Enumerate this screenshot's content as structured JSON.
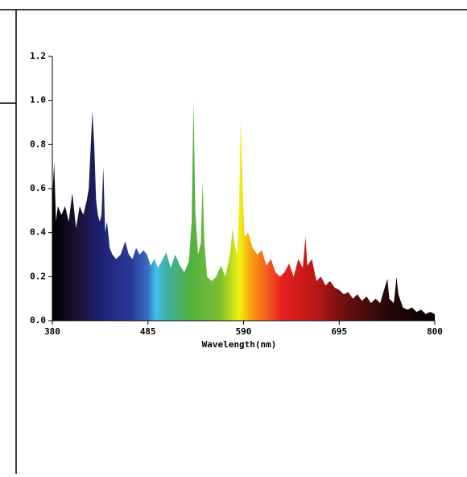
{
  "chart_data": {
    "type": "area",
    "xlabel": "Wavelength(nm)",
    "x": [
      380,
      382,
      384,
      386,
      390,
      394,
      398,
      402,
      406,
      410,
      414,
      418,
      420,
      422,
      424,
      426,
      428,
      430,
      432,
      434,
      436,
      438,
      440,
      443,
      446,
      450,
      455,
      460,
      464,
      468,
      472,
      476,
      480,
      484,
      488,
      492,
      496,
      500,
      505,
      510,
      515,
      520,
      525,
      530,
      533,
      535,
      537,
      540,
      543,
      545,
      547,
      550,
      555,
      560,
      565,
      570,
      575,
      578,
      580,
      583,
      585,
      587,
      589,
      591,
      595,
      600,
      605,
      610,
      615,
      620,
      625,
      630,
      635,
      640,
      645,
      650,
      655,
      658,
      660,
      665,
      670,
      675,
      680,
      685,
      690,
      695,
      700,
      705,
      710,
      715,
      720,
      725,
      730,
      735,
      740,
      745,
      748,
      750,
      755,
      758,
      760,
      765,
      770,
      775,
      780,
      785,
      790,
      795,
      800
    ],
    "values": [
      0.55,
      0.72,
      0.45,
      0.52,
      0.48,
      0.52,
      0.45,
      0.58,
      0.42,
      0.52,
      0.48,
      0.55,
      0.6,
      0.78,
      0.95,
      0.8,
      0.55,
      0.48,
      0.45,
      0.48,
      0.7,
      0.4,
      0.45,
      0.33,
      0.3,
      0.28,
      0.3,
      0.36,
      0.3,
      0.28,
      0.33,
      0.3,
      0.32,
      0.3,
      0.25,
      0.28,
      0.24,
      0.27,
      0.31,
      0.24,
      0.3,
      0.25,
      0.22,
      0.27,
      0.45,
      1.0,
      0.5,
      0.3,
      0.35,
      0.63,
      0.35,
      0.2,
      0.18,
      0.2,
      0.25,
      0.2,
      0.3,
      0.42,
      0.35,
      0.3,
      0.5,
      0.92,
      0.6,
      0.38,
      0.4,
      0.33,
      0.3,
      0.32,
      0.25,
      0.28,
      0.22,
      0.2,
      0.22,
      0.26,
      0.2,
      0.28,
      0.24,
      0.38,
      0.25,
      0.28,
      0.18,
      0.2,
      0.16,
      0.18,
      0.15,
      0.14,
      0.12,
      0.13,
      0.1,
      0.12,
      0.09,
      0.11,
      0.08,
      0.1,
      0.08,
      0.15,
      0.19,
      0.1,
      0.08,
      0.2,
      0.12,
      0.06,
      0.05,
      0.06,
      0.04,
      0.05,
      0.03,
      0.04,
      0.03
    ],
    "xlim": [
      380,
      800
    ],
    "xticks": [
      380,
      485,
      590,
      695,
      800
    ],
    "ylim": [
      0,
      1.2
    ],
    "yticks": [
      {
        "value": 0,
        "label": "0.0"
      },
      {
        "value": 0.2,
        "label": "0.2"
      },
      {
        "value": 0.4,
        "label": "0.4"
      },
      {
        "value": 0.6,
        "label": "0.6"
      },
      {
        "value": 0.8,
        "label": "0.8"
      },
      {
        "value": 1.0,
        "label": "1.0"
      },
      {
        "value": 1.2,
        "label": "1.2"
      }
    ]
  }
}
